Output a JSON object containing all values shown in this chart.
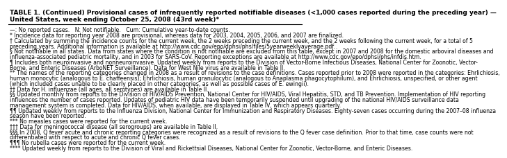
{
  "title_line1": "TABLE 1. (Continued) Provisional cases of infrequently reported notifiable diseases (<1,000 cases reported during the preceding year) —",
  "title_line2": "United States, week ending October 25, 2008 (43rd week)*",
  "footnotes": [
    "—: No reported cases.   N: Not notifiable.   Cum: Cumulative year-to-date counts.",
    "* Incidence data for reporting year 2008 are provisional, whereas data for 2003, 2004, 2005, 2006, and 2007 are finalized.",
    "† Calculated by summing the incidence counts for the current week, the 2 weeks preceding the current week, and the 2 weeks following the current week, for a total of 5",
    "preceding years. Additional information is available at http://www.cdc.gov/epo/dphsi/phs/files/5yearweeklyaverage.pdf.",
    "§ Not notifiable in all states. Data from states where the condition is not notifiable are excluded from this table, except in 2007 and 2008 for the domestic arboviral diseases and",
    "influenza-associated pediatric mortality, and in 2003 for SARS-CoV. Reporting exceptions are available at http://www.cdc.gov/epo/dphsi/phs/infdis.htm.",
    "¶ Includes both neuroinvasive and nonneuroinvasive. Updated weekly from reports to the Division of Vector-Borne Infectious Diseases, National Center for Zoonotic, Vector-",
    "Borne, and Enteric Diseases (ArboNET Surveillance). Data for West Nile virus are available in Table II.",
    "** The names of the reporting categories changed in 2008 as a result of revisions to the case definitions. Cases reported prior to 2008 were reported in the categories: Ehrlichiosis,",
    "human monocytic (analogous to E. chaffeensis); Ehrlichiosis, human granulocytic (analogous to Anaplasma phagocytophilum), and Ehrlichiosis, unspecified, or other agent",
    "(which included cases unable to be clearly placed in other categories, as well as possible cases of E. ewingii).",
    "†† Data for H. influenzae (all ages, all serotypes) are available in Table II.",
    "§§ Updated monthly from reports to the Division of HIV/AIDS Prevention, National Center for HIV/AIDS, Viral Hepatitis, STD, and TB Prevention. Implementation of HIV reporting",
    "influences the number of cases reported. Updates of pediatric HIV data have been temporarily suspended until upgrading of the national HIV/AIDS surveillance data",
    "management system is completed. Data for HIV/AIDS, when available, are displayed in Table IV, which appears quarterly.",
    "¶¶ Updated weekly from reports to the Influenza Division, National Center for Immunization and Respiratory Diseases. Eighty-seven cases occurring during the 2007–08 influenza",
    "season have been reported.",
    "*** No measles cases were reported for the current week.",
    "††† Data for meningococcal disease (all serogroups) are available in Table II.",
    "§§§ In 2008, Q fever acute and chronic reporting categories were recognized as a result of revisions to the Q fever case definition. Prior to that time, case counts were not",
    "differentiated with respect to acute and chronic Q fever cases.",
    "¶¶¶ No rubella cases were reported for the current week.",
    "**** Updated weekly from reports to the Division of Viral and Rickettsial Diseases, National Center for Zoonotic, Vector-Borne, and Enteric Diseases."
  ],
  "bg_color": "#ffffff",
  "text_color": "#000000",
  "title_fontsize": 6.5,
  "footnote_fontsize": 5.6,
  "line_color": "#000000"
}
